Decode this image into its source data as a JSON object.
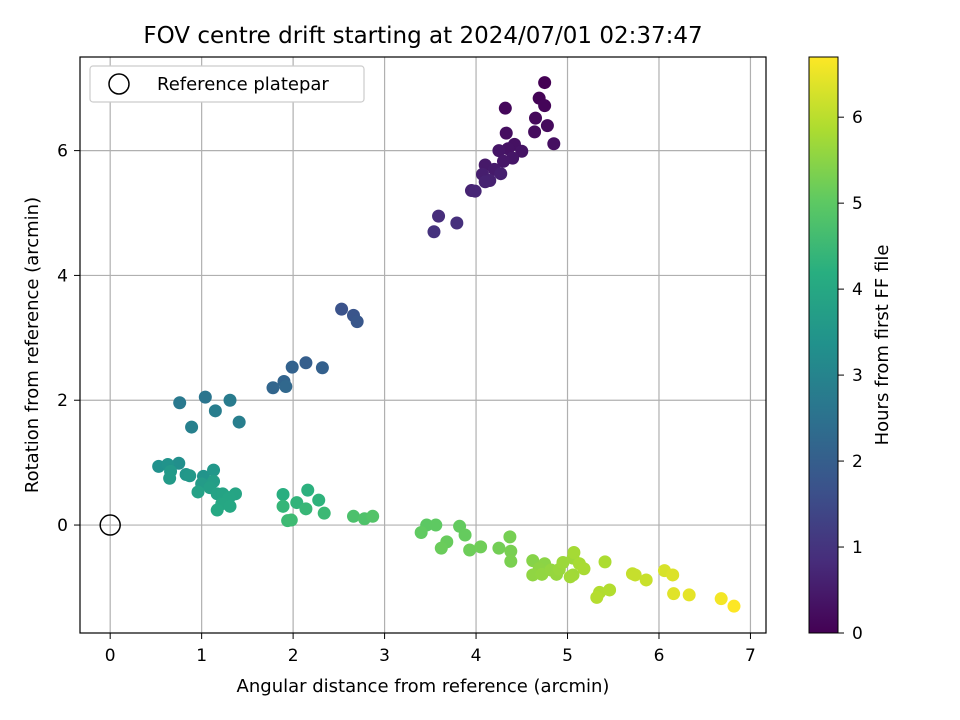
{
  "chart_data": {
    "type": "scatter",
    "title": "FOV centre drift starting at 2024/07/01 02:37:47",
    "xlabel": "Angular distance from reference (arcmin)",
    "ylabel": "Rotation from reference (arcmin)",
    "xlim": [
      -0.33,
      7.17
    ],
    "ylim": [
      -1.73,
      7.5
    ],
    "xticks": [
      0,
      1,
      2,
      3,
      4,
      5,
      6,
      7
    ],
    "yticks": [
      0,
      2,
      4,
      6
    ],
    "grid": true,
    "legend": {
      "placement": "top-left",
      "entries": [
        "Reference platepar"
      ]
    },
    "colorbar": {
      "label": "Hours from first FF file",
      "range": [
        0,
        6.7
      ],
      "ticks": [
        0,
        1,
        2,
        3,
        4,
        5,
        6
      ],
      "colormap": "viridis"
    },
    "reference_point": {
      "x": 0,
      "y": 0
    },
    "series": [
      {
        "points": [
          [
            4.75,
            7.09,
            0.0
          ],
          [
            4.69,
            6.84,
            0.05
          ],
          [
            4.75,
            6.72,
            0.08
          ],
          [
            4.32,
            6.68,
            0.12
          ],
          [
            4.65,
            6.52,
            0.15
          ],
          [
            4.78,
            6.4,
            0.18
          ],
          [
            4.64,
            6.3,
            0.2
          ],
          [
            4.33,
            6.28,
            0.25
          ],
          [
            4.85,
            6.11,
            0.27
          ],
          [
            4.42,
            6.1,
            0.3
          ],
          [
            4.35,
            6.03,
            0.33
          ],
          [
            4.5,
            5.99,
            0.35
          ],
          [
            4.25,
            6.0,
            0.38
          ],
          [
            4.4,
            5.88,
            0.4
          ],
          [
            4.3,
            5.83,
            0.42
          ],
          [
            4.1,
            5.77,
            0.45
          ],
          [
            4.2,
            5.7,
            0.5
          ],
          [
            4.07,
            5.62,
            0.55
          ],
          [
            4.27,
            5.63,
            0.57
          ],
          [
            4.15,
            5.52,
            0.6
          ],
          [
            4.1,
            5.5,
            0.62
          ],
          [
            3.95,
            5.36,
            0.65
          ],
          [
            3.99,
            5.35,
            0.7
          ],
          [
            3.59,
            4.95,
            0.85
          ],
          [
            3.79,
            4.84,
            0.9
          ],
          [
            3.54,
            4.7,
            0.95
          ],
          [
            2.53,
            3.46,
            1.7
          ],
          [
            2.66,
            3.36,
            1.75
          ],
          [
            2.7,
            3.26,
            1.8
          ],
          [
            2.14,
            2.6,
            2.0
          ],
          [
            2.32,
            2.52,
            2.05
          ],
          [
            1.99,
            2.53,
            2.1
          ],
          [
            1.9,
            2.3,
            2.15
          ],
          [
            1.78,
            2.2,
            2.2
          ],
          [
            1.92,
            2.22,
            2.25
          ],
          [
            1.04,
            2.05,
            2.6
          ],
          [
            0.76,
            1.96,
            2.7
          ],
          [
            1.31,
            2.0,
            2.75
          ],
          [
            1.15,
            1.83,
            2.8
          ],
          [
            1.41,
            1.65,
            2.85
          ],
          [
            0.89,
            1.57,
            2.9
          ],
          [
            0.75,
            0.99,
            3.3
          ],
          [
            0.53,
            0.94,
            3.35
          ],
          [
            0.63,
            0.97,
            3.4
          ],
          [
            1.02,
            0.78,
            3.45
          ],
          [
            0.83,
            0.81,
            3.5
          ],
          [
            1.13,
            0.88,
            3.52
          ],
          [
            0.87,
            0.79,
            3.55
          ],
          [
            0.66,
            0.86,
            3.58
          ],
          [
            0.65,
            0.75,
            3.6
          ],
          [
            1.0,
            0.66,
            3.65
          ],
          [
            1.13,
            0.7,
            3.7
          ],
          [
            1.09,
            0.6,
            3.75
          ],
          [
            0.96,
            0.53,
            3.8
          ],
          [
            1.17,
            0.5,
            3.85
          ],
          [
            1.23,
            0.5,
            3.88
          ],
          [
            1.37,
            0.5,
            3.9
          ],
          [
            1.3,
            0.44,
            3.92
          ],
          [
            1.22,
            0.34,
            3.95
          ],
          [
            1.31,
            0.3,
            3.98
          ],
          [
            1.17,
            0.24,
            4.0
          ],
          [
            1.89,
            0.49,
            4.2
          ],
          [
            2.16,
            0.56,
            4.25
          ],
          [
            2.28,
            0.4,
            4.3
          ],
          [
            2.04,
            0.36,
            4.35
          ],
          [
            1.89,
            0.3,
            4.4
          ],
          [
            2.14,
            0.26,
            4.45
          ],
          [
            2.34,
            0.19,
            4.5
          ],
          [
            1.94,
            0.07,
            4.52
          ],
          [
            1.98,
            0.08,
            4.55
          ],
          [
            2.66,
            0.14,
            4.75
          ],
          [
            2.78,
            0.1,
            4.8
          ],
          [
            2.87,
            0.14,
            4.85
          ],
          [
            3.46,
            0.0,
            5.0
          ],
          [
            3.56,
            0.0,
            5.02
          ],
          [
            3.4,
            -0.12,
            5.05
          ],
          [
            3.82,
            -0.02,
            5.08
          ],
          [
            3.88,
            -0.16,
            5.1
          ],
          [
            3.68,
            -0.27,
            5.12
          ],
          [
            3.62,
            -0.37,
            5.15
          ],
          [
            3.93,
            -0.4,
            5.18
          ],
          [
            4.05,
            -0.35,
            5.2
          ],
          [
            4.25,
            -0.37,
            5.25
          ],
          [
            4.37,
            -0.19,
            5.28
          ],
          [
            4.38,
            -0.42,
            5.3
          ],
          [
            4.38,
            -0.58,
            5.32
          ],
          [
            4.62,
            -0.57,
            5.45
          ],
          [
            4.75,
            -0.62,
            5.5
          ],
          [
            4.69,
            -0.7,
            5.52
          ],
          [
            4.62,
            -0.8,
            5.55
          ],
          [
            4.72,
            -0.79,
            5.58
          ],
          [
            4.82,
            -0.72,
            5.6
          ],
          [
            4.88,
            -0.79,
            5.62
          ],
          [
            4.91,
            -0.71,
            5.65
          ],
          [
            4.95,
            -0.6,
            5.68
          ],
          [
            5.06,
            -0.53,
            5.7
          ],
          [
            5.06,
            -0.8,
            5.72
          ],
          [
            5.03,
            -0.83,
            5.75
          ],
          [
            5.07,
            -0.44,
            5.78
          ],
          [
            5.13,
            -0.62,
            5.8
          ],
          [
            5.18,
            -0.7,
            5.82
          ],
          [
            5.41,
            -0.59,
            5.85
          ],
          [
            5.35,
            -1.08,
            5.9
          ],
          [
            5.46,
            -1.04,
            5.92
          ],
          [
            5.32,
            -1.16,
            5.95
          ],
          [
            5.71,
            -0.78,
            6.1
          ],
          [
            5.74,
            -0.8,
            6.12
          ],
          [
            5.86,
            -0.88,
            6.15
          ],
          [
            6.06,
            -0.73,
            6.3
          ],
          [
            6.15,
            -0.8,
            6.35
          ],
          [
            6.16,
            -1.1,
            6.4
          ],
          [
            6.33,
            -1.12,
            6.45
          ],
          [
            6.68,
            -1.18,
            6.6
          ],
          [
            6.82,
            -1.3,
            6.7
          ]
        ]
      }
    ]
  }
}
